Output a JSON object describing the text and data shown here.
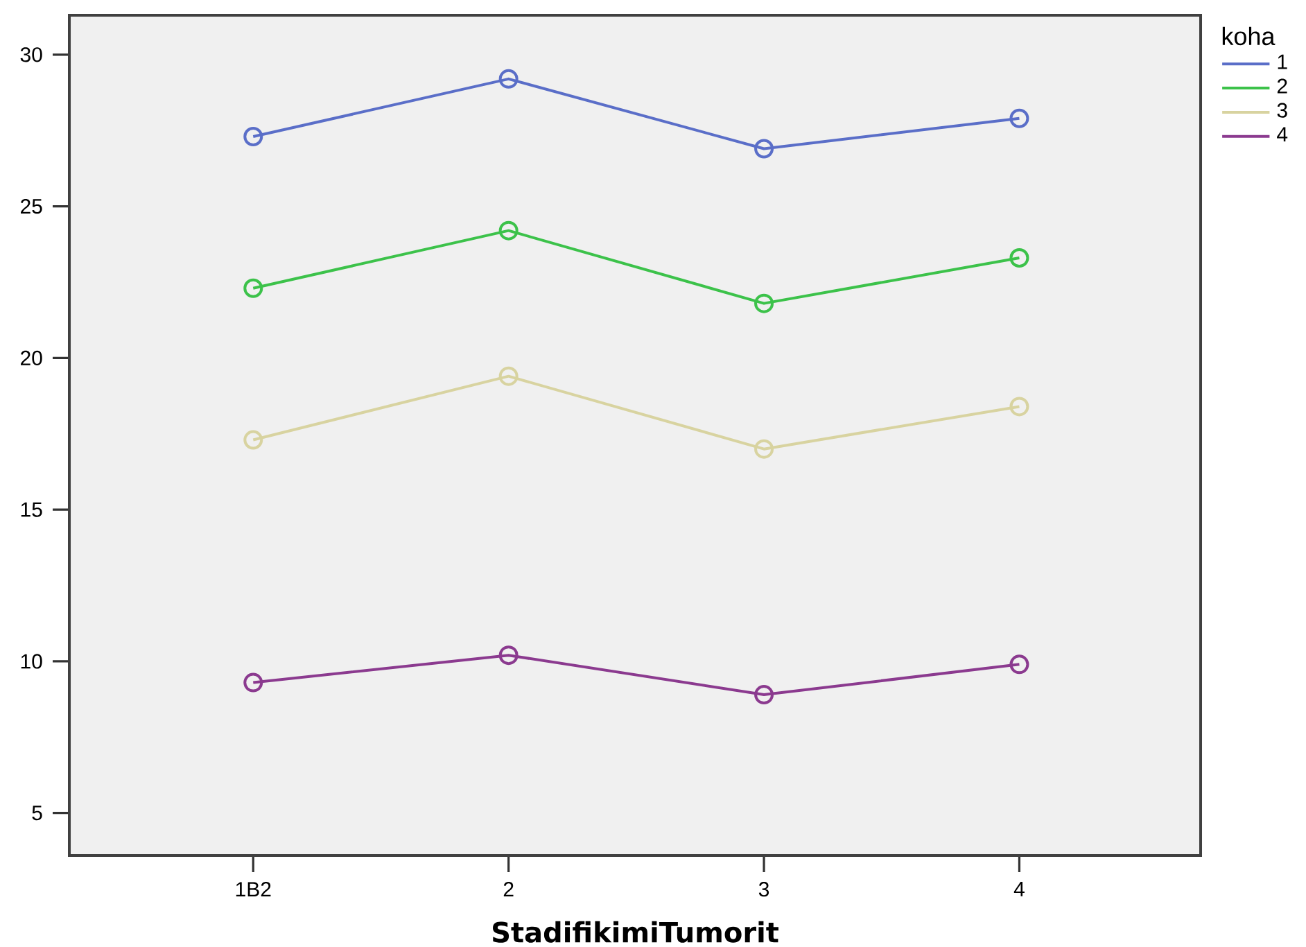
{
  "chart_data": {
    "type": "line",
    "xlabel": "StadifikimiTumorit",
    "legend_title": "koha",
    "categories": [
      "1B2",
      "2",
      "3",
      "4"
    ],
    "series": [
      {
        "name": "1",
        "color": "#5a6ec8",
        "values": [
          27.3,
          29.2,
          26.9,
          27.9
        ]
      },
      {
        "name": "2",
        "color": "#3cc24a",
        "values": [
          22.3,
          24.2,
          21.8,
          23.3
        ]
      },
      {
        "name": "3",
        "color": "#d8d3a0",
        "values": [
          17.3,
          19.4,
          17.0,
          18.4
        ]
      },
      {
        "name": "4",
        "color": "#8b3a8f",
        "values": [
          9.3,
          10.2,
          8.9,
          9.9
        ]
      }
    ],
    "ylim": [
      3.6,
      31.3
    ],
    "yticks": [
      5,
      10,
      15,
      20,
      25,
      30
    ],
    "grid": false,
    "legend": "top right",
    "marker": "circle",
    "line_style": "solid"
  }
}
